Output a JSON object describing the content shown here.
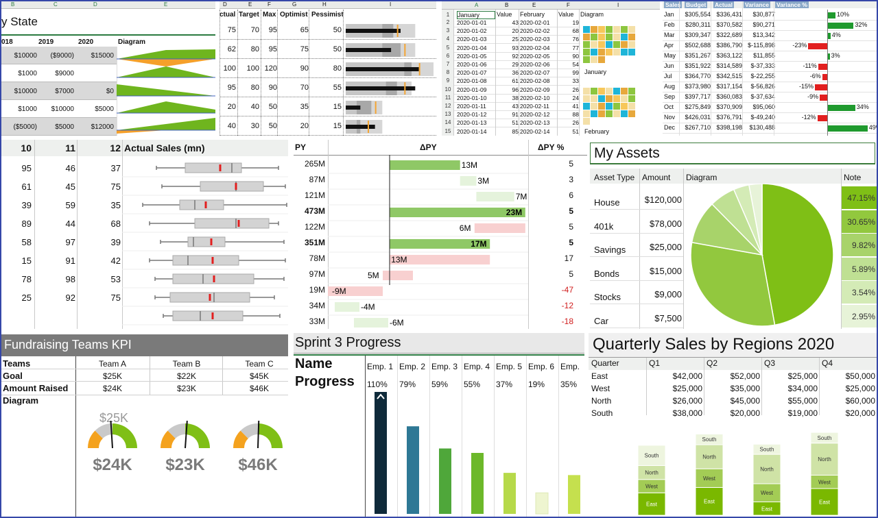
{
  "state": {
    "colletters": [
      "B",
      "C",
      "D",
      "E"
    ],
    "title": "y State",
    "years": [
      "018",
      "2019",
      "2020",
      "Diagram"
    ],
    "rows": [
      [
        "$10000",
        "($9000)",
        "$15000"
      ],
      [
        "$1000",
        "$9000",
        ""
      ],
      [
        "$10000",
        "$7000",
        "$0"
      ],
      [
        "$1000",
        "$10000",
        "$5000"
      ],
      [
        "($5000)",
        "$5000",
        "$12000"
      ]
    ]
  },
  "bullet": {
    "colletters": [
      "D",
      "E",
      "F",
      "G",
      "H",
      "I"
    ],
    "headers": [
      "ctual",
      "Target",
      "Max",
      "Optimist",
      "Pessimist"
    ],
    "rows": [
      {
        "actual": "75",
        "target": "70",
        "max": "95",
        "opt": "65",
        "pes": "50",
        "a": 75,
        "tg": 70,
        "mx": 95,
        "o": 65,
        "p": 50
      },
      {
        "actual": "62",
        "target": "80",
        "max": "95",
        "opt": "75",
        "pes": "50",
        "a": 62,
        "tg": 80,
        "mx": 95,
        "o": 75,
        "p": 50
      },
      {
        "actual": "100",
        "target": "100",
        "max": "120",
        "opt": "90",
        "pes": "80",
        "a": 100,
        "tg": 100,
        "mx": 120,
        "o": 90,
        "p": 80
      },
      {
        "actual": "95",
        "target": "80",
        "max": "90",
        "opt": "70",
        "pes": "55",
        "a": 95,
        "tg": 80,
        "mx": 90,
        "o": 70,
        "p": 55
      },
      {
        "actual": "20",
        "target": "40",
        "max": "50",
        "opt": "35",
        "pes": "15",
        "a": 20,
        "tg": 40,
        "mx": 50,
        "o": 35,
        "p": 15
      },
      {
        "actual": "40",
        "target": "30",
        "max": "50",
        "opt": "20",
        "pes": "15",
        "a": 40,
        "tg": 30,
        "mx": 50,
        "o": 20,
        "p": 15
      }
    ]
  },
  "calendar": {
    "colletters": [
      "A",
      "B",
      "E",
      "F",
      "I"
    ],
    "headers": [
      "January",
      "Value",
      "February",
      "Value",
      "Diagram"
    ],
    "rownums": [
      "1",
      "2",
      "3",
      "4",
      "5",
      "6",
      "7",
      "8",
      "9",
      "10",
      "11",
      "12",
      "13",
      "14",
      "15"
    ],
    "rows": [
      [
        "2020-01-01",
        "43",
        "2020-02-01",
        "19"
      ],
      [
        "2020-01-02",
        "20",
        "2020-02-02",
        "68"
      ],
      [
        "2020-01-03",
        "25",
        "2020-02-03",
        "76"
      ],
      [
        "2020-01-04",
        "93",
        "2020-02-04",
        "77"
      ],
      [
        "2020-01-05",
        "92",
        "2020-02-05",
        "90"
      ],
      [
        "2020-01-06",
        "29",
        "2020-02-06",
        "54"
      ],
      [
        "2020-01-07",
        "36",
        "2020-02-07",
        "99"
      ],
      [
        "2020-01-08",
        "61",
        "2020-02-08",
        "33"
      ],
      [
        "2020-01-09",
        "96",
        "2020-02-09",
        "26"
      ],
      [
        "2020-01-10",
        "38",
        "2020-02-10",
        "24"
      ],
      [
        "2020-01-11",
        "43",
        "2020-02-11",
        "41"
      ],
      [
        "2020-01-12",
        "91",
        "2020-02-12",
        "88"
      ],
      [
        "2020-01-13",
        "51",
        "2020-02-13",
        "26"
      ],
      [
        "2020-01-14",
        "85",
        "2020-02-14",
        "51"
      ]
    ],
    "label_jan": "January",
    "label_feb": "February"
  },
  "budget": {
    "headers": [
      "Sales",
      "Budget",
      "Actual",
      "Variance",
      "Variance %"
    ],
    "rows": [
      {
        "m": "Jan",
        "b": "$305,554",
        "a": "$336,431",
        "v": "$30,877",
        "p": "10%",
        "pv": 10
      },
      {
        "m": "Feb",
        "b": "$280,311",
        "a": "$370,582",
        "v": "$90,271",
        "p": "32%",
        "pv": 32
      },
      {
        "m": "Mar",
        "b": "$309,347",
        "a": "$322,689",
        "v": "$13,342",
        "p": "4%",
        "pv": 4
      },
      {
        "m": "Apr",
        "b": "$502,688",
        "a": "$386,790",
        "v": "$-115,898",
        "p": "-23%",
        "pv": -23
      },
      {
        "m": "May",
        "b": "$351,267",
        "a": "$363,122",
        "v": "$11,855",
        "p": "3%",
        "pv": 3
      },
      {
        "m": "Jun",
        "b": "$351,922",
        "a": "$314,589",
        "v": "$-37,333",
        "p": "-11%",
        "pv": -11
      },
      {
        "m": "Jul",
        "b": "$364,770",
        "a": "$342,515",
        "v": "$-22,255",
        "p": "-6%",
        "pv": -6
      },
      {
        "m": "Aug",
        "b": "$373,980",
        "a": "$317,154",
        "v": "$-56,826",
        "p": "-15%",
        "pv": -15
      },
      {
        "m": "Sep",
        "b": "$397,717",
        "a": "$360,083",
        "v": "$-37,634",
        "p": "-9%",
        "pv": -9
      },
      {
        "m": "Oct",
        "b": "$275,849",
        "a": "$370,909",
        "v": "$95,060",
        "p": "34%",
        "pv": 34
      },
      {
        "m": "Nov",
        "b": "$426,031",
        "a": "$376,791",
        "v": "$-49,240",
        "p": "-12%",
        "pv": -12
      },
      {
        "m": "Dec",
        "b": "$267,710",
        "a": "$398,198",
        "v": "$130,488",
        "p": "49%",
        "pv": 49
      }
    ]
  },
  "boxplot": {
    "headers": [
      "10",
      "11",
      "12",
      "Actual Sales (mn)"
    ],
    "rows": [
      [
        "95",
        "46",
        "37"
      ],
      [
        "61",
        "45",
        "75"
      ],
      [
        "39",
        "59",
        "35"
      ],
      [
        "89",
        "44",
        "68"
      ],
      [
        "58",
        "97",
        "39"
      ],
      [
        "15",
        "91",
        "42"
      ],
      [
        "78",
        "98",
        "53"
      ],
      [
        "25",
        "92",
        "75"
      ]
    ]
  },
  "waterfall": {
    "headers": [
      "PY",
      "ΔPY",
      "ΔPY %"
    ],
    "rows": [
      {
        "py": "265M",
        "d": "13M",
        "pct": "5",
        "bold": false,
        "neg": false
      },
      {
        "py": "87M",
        "d": "3M",
        "pct": "3",
        "bold": false,
        "neg": false
      },
      {
        "py": "121M",
        "d": "7M",
        "pct": "6",
        "bold": false,
        "neg": false
      },
      {
        "py": "473M",
        "d": "23M",
        "pct": "5",
        "bold": true,
        "neg": false
      },
      {
        "py": "122M",
        "d": "6M",
        "pct": "5",
        "bold": false,
        "neg": false
      },
      {
        "py": "351M",
        "d": "17M",
        "pct": "5",
        "bold": true,
        "neg": false
      },
      {
        "py": "78M",
        "d": "13M",
        "pct": "17",
        "bold": false,
        "neg": false
      },
      {
        "py": "97M",
        "d": "5M",
        "pct": "5",
        "bold": false,
        "neg": false
      },
      {
        "py": "19M",
        "d": "-9M",
        "pct": "-47",
        "bold": false,
        "neg": true
      },
      {
        "py": "34M",
        "d": "-4M",
        "pct": "-12",
        "bold": false,
        "neg": true
      },
      {
        "py": "33M",
        "d": "-6M",
        "pct": "-18",
        "bold": false,
        "neg": true
      }
    ]
  },
  "assets": {
    "title": "My Assets",
    "headers": [
      "Asset Type",
      "Amount",
      "Diagram",
      "Note"
    ],
    "rows": [
      {
        "type": "House",
        "amount": "$120,000",
        "note": "47.15%",
        "pct": 47.15
      },
      {
        "type": "401k",
        "amount": "$78,000",
        "note": "30.65%",
        "pct": 30.65
      },
      {
        "type": "Savings",
        "amount": "$25,000",
        "note": "9.82%",
        "pct": 9.82
      },
      {
        "type": "Bonds",
        "amount": "$15,000",
        "note": "5.89%",
        "pct": 5.89
      },
      {
        "type": "Stocks",
        "amount": "$9,000",
        "note": "3.54%",
        "pct": 3.54
      },
      {
        "type": "Car",
        "amount": "$7,500",
        "note": "2.95%",
        "pct": 2.95
      }
    ],
    "colors": [
      "#7fbf16",
      "#92c83e",
      "#a8d36a",
      "#bfe093",
      "#d4ebb6",
      "#e7f3d8"
    ]
  },
  "kpi": {
    "title": "Fundraising Teams KPI",
    "rowlabels": [
      "Teams",
      "Goal",
      "Amount Raised",
      "Diagram"
    ],
    "teams": [
      {
        "name": "Team A",
        "goal": "$25K",
        "raised": "$24K",
        "big": "$24K",
        "frac": 0.96
      },
      {
        "name": "Team B",
        "goal": "$22K",
        "raised": "$23K",
        "big": "$23K",
        "frac": 1.045
      },
      {
        "name": "Team C",
        "goal": "$45K",
        "raised": "$46K",
        "big": "$46K",
        "frac": 1.02
      }
    ],
    "goal_caption": "$25K"
  },
  "sprint": {
    "title": "Sprint 3 Progress",
    "name_label": "Name",
    "progress_label": "Progress",
    "emps": [
      "Emp. 1",
      "Emp. 2",
      "Emp. 3",
      "Emp. 4",
      "Emp. 5",
      "Emp. 6",
      "Emp."
    ],
    "pcts": [
      "110%",
      "79%",
      "59%",
      "55%",
      "37%",
      "19%",
      "35%"
    ],
    "values": [
      110,
      79,
      59,
      55,
      37,
      19,
      35
    ],
    "colors": [
      "#0f2a3a",
      "#2e7895",
      "#4fa73a",
      "#6cb82a",
      "#b6d94a",
      "#eef5d0",
      "#c5e04e"
    ]
  },
  "quarterly": {
    "title": "Quarterly Sales by Regions 2020",
    "headers": [
      "Quarter",
      "Q1",
      "Q2",
      "Q3",
      "Q4"
    ],
    "rows": [
      {
        "region": "East",
        "vals": [
          "$42,000",
          "$52,000",
          "$25,000",
          "$50,000"
        ]
      },
      {
        "region": "West",
        "vals": [
          "$25,000",
          "$35,000",
          "$34,000",
          "$25,000"
        ]
      },
      {
        "region": "North",
        "vals": [
          "$26,000",
          "$45,000",
          "$55,000",
          "$60,000"
        ]
      },
      {
        "region": "South",
        "vals": [
          "$38,000",
          "$20,000",
          "$19,000",
          "$20,000"
        ]
      }
    ],
    "stack_numbers": {
      "East": [
        42000,
        52000,
        25000,
        50000
      ],
      "West": [
        25000,
        35000,
        34000,
        25000
      ],
      "North": [
        26000,
        45000,
        55000,
        60000
      ],
      "South": [
        38000,
        20000,
        19000,
        20000
      ]
    },
    "stack_labels": [
      "East",
      "West",
      "North",
      "South"
    ],
    "stack_colors": [
      "#7ab800",
      "#a3cc55",
      "#cfe3a6",
      "#eef5df"
    ]
  }
}
